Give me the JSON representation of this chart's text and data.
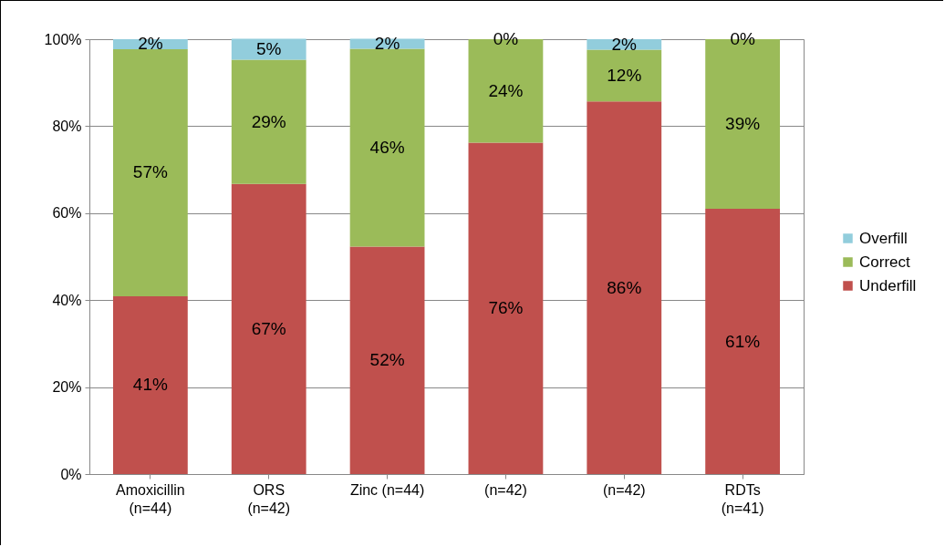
{
  "chart_data": {
    "type": "bar",
    "stacked": true,
    "categories": [
      "Amoxicillin\n(n=44)",
      "ORS\n(n=42)",
      "Zinc (n=44)",
      "(n=42)",
      "(n=42)",
      "RDTs\n(n=41)"
    ],
    "series": [
      {
        "name": "Underfill",
        "color": "#c0504d",
        "values": [
          40.9,
          66.7,
          52.3,
          76.2,
          85.7,
          61.0
        ],
        "value_labels": [
          "41%",
          "67%",
          "52%",
          "76%",
          "86%",
          "61%"
        ]
      },
      {
        "name": "Correct",
        "color": "#9bbb59",
        "values": [
          56.8,
          28.6,
          45.5,
          23.8,
          11.9,
          39.0
        ],
        "value_labels": [
          "57%",
          "29%",
          "46%",
          "24%",
          "12%",
          "39%"
        ]
      },
      {
        "name": "Overfill",
        "color": "#92cddc",
        "values": [
          2.3,
          4.8,
          2.3,
          0,
          2.4,
          0
        ],
        "value_labels": [
          "2%",
          "5%",
          "2%",
          "0%",
          "2%",
          "0%"
        ]
      }
    ],
    "ylim": [
      0,
      100
    ],
    "yticks": [
      {
        "value": 0,
        "label": "0%"
      },
      {
        "value": 20,
        "label": "20%"
      },
      {
        "value": 40,
        "label": "40%"
      },
      {
        "value": 60,
        "label": "60%"
      },
      {
        "value": 80,
        "label": "80%"
      },
      {
        "value": 100,
        "label": "100%"
      }
    ],
    "grid": "y",
    "legend": "right"
  }
}
